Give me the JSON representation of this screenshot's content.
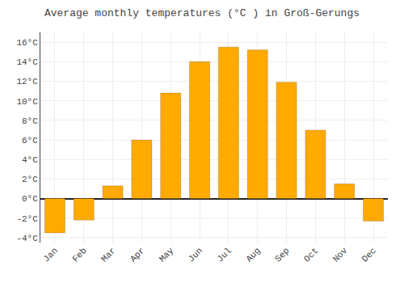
{
  "chart_data": {
    "type": "bar",
    "title": "Average monthly temperatures (°C ) in Groß-Gerungs",
    "categories": [
      "Jan",
      "Feb",
      "Mar",
      "Apr",
      "May",
      "Jun",
      "Jul",
      "Aug",
      "Sep",
      "Oct",
      "Nov",
      "Dec"
    ],
    "values": [
      -3.5,
      -2.2,
      1.3,
      6.0,
      10.8,
      14.0,
      15.5,
      15.2,
      11.9,
      7.0,
      1.5,
      -2.3
    ],
    "color": "#FFAA00",
    "ylim": [
      -4.5,
      17.0
    ],
    "yticks": [
      {
        "value": -4,
        "label": "-4°C"
      },
      {
        "value": -2,
        "label": "-2°C"
      },
      {
        "value": 0,
        "label": "0°C"
      },
      {
        "value": 2,
        "label": "2°C"
      },
      {
        "value": 4,
        "label": "4°C"
      },
      {
        "value": 6,
        "label": "6°C"
      },
      {
        "value": 8,
        "label": "8°C"
      },
      {
        "value": 10,
        "label": "10°C"
      },
      {
        "value": 12,
        "label": "12°C"
      },
      {
        "value": 14,
        "label": "14°C"
      },
      {
        "value": 16,
        "label": "16°C"
      }
    ],
    "grid": true
  }
}
